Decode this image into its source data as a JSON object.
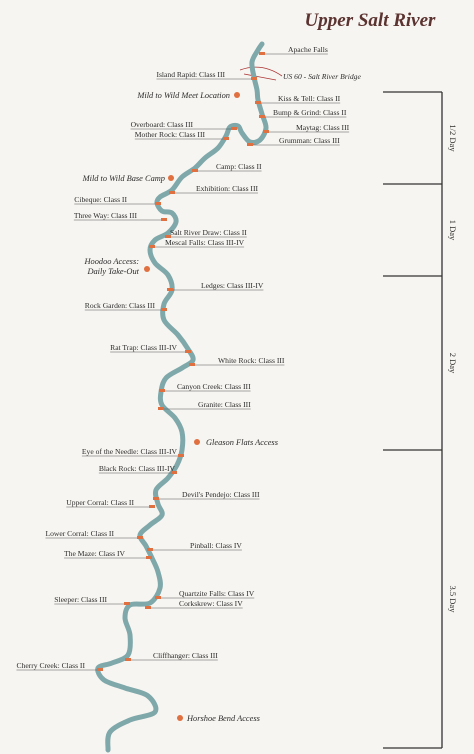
{
  "title": "Upper Salt River",
  "features": [
    "Apache Falls",
    "Island Rapid: Class III",
    "US 60 - Salt River Bridge",
    "Mild to Wild Meet Location",
    "Kiss & Tell: Class II",
    "Bump & Grind: Class II",
    "Overboard: Class III",
    "Maytag: Class III",
    "Mother Rock: Class III",
    "Grumman: Class III",
    "Camp: Class II",
    "Mild to Wild Base Camp",
    "Exhibition: Class III",
    "Cibeque: Class II",
    "Three Way: Class III",
    "Salt River Draw: Class II",
    "Mescal Falls: Class III-IV",
    "Hoodoo Access:",
    "Daily Take-Out",
    "Ledges: Class III-IV",
    "Rock Garden: Class III",
    "Rat Trap: Class III-IV",
    "White Rock: Class III",
    "Canyon Creek: Class III",
    "Granite: Class III",
    "Gleason Flats Access",
    "Eye of the Needle: Class III-IV",
    "Black Rock: Class III-IV",
    "Devil's Pendejo: Class III",
    "Upper Corral: Class II",
    "Lower Corral: Class II",
    "Pinball: Class IV",
    "The Maze: Class IV",
    "Quartzite Falls: Class IV",
    "Sleeper: Class III",
    "Corkskrew: Class IV",
    "Cliffhanger: Class III",
    "Cherry Creek: Class II",
    "Horshoe Bend Access"
  ],
  "days": [
    "1/2 Day",
    "1 Day",
    "2 Day",
    "3.5 Day"
  ]
}
